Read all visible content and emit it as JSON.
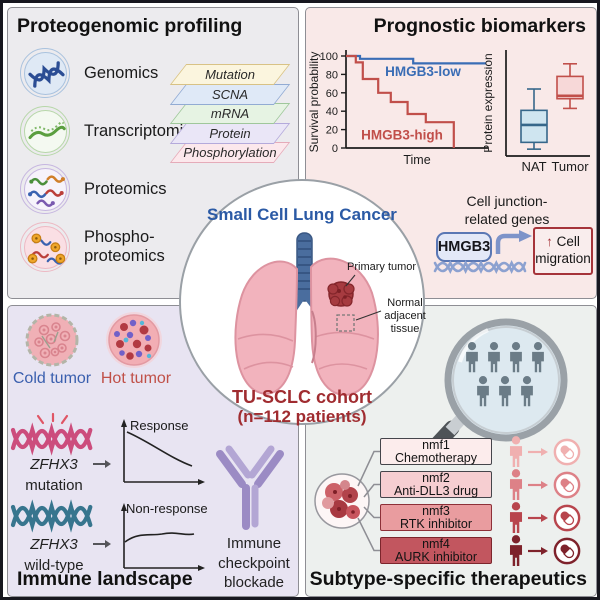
{
  "proteogenomic": {
    "title": "Proteogenomic profiling",
    "omics": [
      {
        "id": "genomics",
        "line1": "Genomics",
        "line2": "",
        "ring": "#a9c2de",
        "fill": "#dfe9f5",
        "icon": "dna-icon"
      },
      {
        "id": "transcriptomics",
        "line1": "Transcriptomics",
        "line2": "",
        "ring": "#b7d7a9",
        "fill": "#f4f9f1",
        "icon": "rna-icon"
      },
      {
        "id": "proteomics",
        "line1": "Proteomics",
        "line2": "",
        "ring": "#c6b6e0",
        "fill": "#f6f3fb",
        "icon": "protein-icon"
      },
      {
        "id": "phospho-proteomics",
        "line1": "Phospho-",
        "line2": "proteomics",
        "ring": "#edb9c3",
        "fill": "#fadfe4",
        "icon": "phospho-icon"
      }
    ],
    "layers": [
      {
        "label": "Mutation",
        "fill": "#fbf5de",
        "border": "#d8c285"
      },
      {
        "label": "SCNA",
        "fill": "#dfe9f7",
        "border": "#92abd3"
      },
      {
        "label": "mRNA",
        "fill": "#e6f3e3",
        "border": "#9fc79b"
      },
      {
        "label": "Protein",
        "fill": "#eae6f7",
        "border": "#b4aadb"
      },
      {
        "label": "Phosphorylation",
        "fill": "#fce8ec",
        "border": "#e5abb9"
      }
    ]
  },
  "prognostic": {
    "title": "Prognostic biomarkers",
    "survival": {
      "type": "line",
      "ylabel": "Survival probability",
      "xlabel": "Time",
      "yticks": [
        0,
        20,
        40,
        60,
        80,
        100
      ],
      "series": [
        {
          "name": "HMGB3-low",
          "color": "#3a6db5",
          "steps": [
            [
              0,
              100
            ],
            [
              0.1,
              100
            ],
            [
              0.1,
              97
            ],
            [
              0.48,
              97
            ],
            [
              0.48,
              92
            ],
            [
              1,
              92
            ]
          ],
          "label_pos": [
            0.55,
            78
          ]
        },
        {
          "name": "HMGB3-high",
          "color": "#c14f4a",
          "steps": [
            [
              0,
              100
            ],
            [
              0.07,
              100
            ],
            [
              0.07,
              93
            ],
            [
              0.12,
              93
            ],
            [
              0.12,
              75
            ],
            [
              0.23,
              75
            ],
            [
              0.23,
              60
            ],
            [
              0.32,
              60
            ],
            [
              0.32,
              50
            ],
            [
              0.44,
              50
            ],
            [
              0.44,
              37
            ],
            [
              0.57,
              37
            ],
            [
              0.57,
              28
            ],
            [
              0.77,
              28
            ],
            [
              0.77,
              0
            ]
          ],
          "label_pos": [
            0.4,
            9
          ]
        }
      ]
    },
    "boxplot": {
      "type": "boxplot",
      "ylabel": "Protein expression",
      "groups": [
        {
          "name": "NAT",
          "low": 5,
          "q1": 12,
          "median": 30,
          "q3": 45,
          "high": 67,
          "fill": "#cfe5f0",
          "stroke": "#36678a"
        },
        {
          "name": "Tumor",
          "low": 47,
          "q1": 57,
          "median": 60,
          "q3": 80,
          "high": 93,
          "fill": "#f7d8d8",
          "stroke": "#c14f4a"
        }
      ]
    },
    "junction": {
      "heading_line1": "Cell junction-",
      "heading_line2": "related genes",
      "gene": "HMGB3",
      "effect_arrow": "↑",
      "effect_line1": "Cell",
      "effect_line2": "migration"
    }
  },
  "center": {
    "title": "Small Cell Lung Cancer",
    "label_primary": "Primary tumor",
    "label_normal_line1": "Normal",
    "label_normal_line2": "adjacent tissue",
    "cohort_line1": "TU-SCLC cohort",
    "cohort_line2": "(n=112 patients)"
  },
  "immune": {
    "title": "Immune landscape",
    "cold_label": "Cold tumor",
    "cold_color": "#3a5fae",
    "hot_label": "Hot tumor",
    "hot_color": "#c05048",
    "mutation_gene": "ZFHX3",
    "mutation_word": "mutation",
    "wildtype_gene": "ZFHX3",
    "wildtype_word": "wild-type",
    "response_label": "Response",
    "nonresponse_label": "Non-response",
    "icb_line1": "Immune",
    "icb_line2": "checkpoint",
    "icb_line3": "blockade"
  },
  "subtype": {
    "title": "Subtype-specific therapeutics",
    "rows": [
      {
        "id": "nmf1",
        "line1": "nmf1",
        "line2": "Chemotherapy",
        "box_fill": "#fcecec",
        "box_border": "#45454b",
        "color": "#f0b0b0"
      },
      {
        "id": "nmf2",
        "line1": "nmf2",
        "line2": "Anti-DLL3 drug",
        "box_fill": "#f6ced1",
        "box_border": "#45454b",
        "color": "#dd8187"
      },
      {
        "id": "nmf3",
        "line1": "nmf3",
        "line2": "RTK inhibitor",
        "box_fill": "#e99c9f",
        "box_border": "#8d3038",
        "color": "#b8454d"
      },
      {
        "id": "nmf4",
        "line1": "nmf4",
        "line2": "AURK inhibitor",
        "box_fill": "#c2565f",
        "box_border": "#7c252c",
        "color": "#7e222b"
      }
    ]
  }
}
